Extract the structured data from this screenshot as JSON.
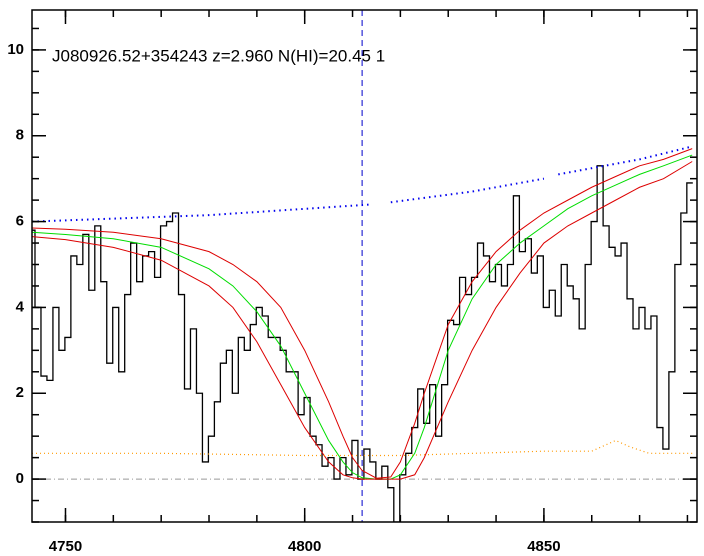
{
  "chart_data": {
    "type": "spectrum",
    "title": "J080926.52+354243 z=2.960 N(HI)=20.45 1",
    "xlim": [
      4743,
      4882
    ],
    "ylim": [
      -1,
      10.93
    ],
    "xticks": [
      4750,
      4800,
      4850
    ],
    "yticks": [
      0,
      2,
      4,
      6,
      8,
      10
    ],
    "xminor_ticks": [
      4750,
      4760,
      4770,
      4780,
      4790,
      4800,
      4810,
      4820,
      4830,
      4840,
      4850,
      4860,
      4870,
      4880
    ],
    "yminor_ticks": [
      -1,
      -0.5,
      0,
      0.5,
      1,
      1.5,
      2,
      2.5,
      3,
      3.5,
      4,
      4.5,
      5,
      5.5,
      6,
      6.5,
      7,
      7.5,
      8,
      8.5,
      9,
      9.5,
      10,
      10.5
    ],
    "zero_line": 0,
    "marker_x": 4812,
    "series": [
      {
        "role": "flux",
        "color": "#000000",
        "x": [
          4743,
          4744.25,
          4745.5,
          4746.75,
          4748,
          4749.25,
          4750.5,
          4751.75,
          4753,
          4754.25,
          4755.5,
          4756.75,
          4758,
          4759.25,
          4760.5,
          4761.75,
          4763,
          4764.25,
          4765.5,
          4766.75,
          4768,
          4769.25,
          4770.5,
          4771.75,
          4773,
          4774.25,
          4775.5,
          4776.75,
          4778,
          4779.25,
          4780.5,
          4781.75,
          4783,
          4784.25,
          4785.5,
          4786.75,
          4788,
          4789.25,
          4790.5,
          4791.75,
          4793,
          4794.25,
          4795.5,
          4796.75,
          4798,
          4799.25,
          4800.5,
          4801.75,
          4803,
          4804.25,
          4805.5,
          4806.75,
          4808,
          4809.25,
          4810.5,
          4811.75,
          4813,
          4814.25,
          4815.5,
          4816.75,
          4818,
          4819.25,
          4820.5,
          4821.75,
          4823,
          4824.25,
          4825.5,
          4826.75,
          4828,
          4829.25,
          4830.5,
          4831.75,
          4833,
          4834.25,
          4835.5,
          4836.75,
          4838,
          4839.25,
          4840.5,
          4841.75,
          4843,
          4844.25,
          4845.5,
          4846.75,
          4848,
          4849.25,
          4850.5,
          4851.75,
          4853,
          4854.25,
          4855.5,
          4856.75,
          4858,
          4859.25,
          4860.5,
          4861.75,
          4863,
          4864.25,
          4865.5,
          4866.75,
          4868,
          4869.25,
          4870.5,
          4871.75,
          4873,
          4874.25,
          4875.5,
          4876.75,
          4878,
          4879.25,
          4880.5
        ],
        "values": [
          5.8,
          4.0,
          2.4,
          2.3,
          4.0,
          3.0,
          3.3,
          5.2,
          5.0,
          5.7,
          4.4,
          5.9,
          4.6,
          2.7,
          4.0,
          2.5,
          4.3,
          5.5,
          4.6,
          5.2,
          5.3,
          4.7,
          5.9,
          6.0,
          6.2,
          4.3,
          2.1,
          3.5,
          2.0,
          0.4,
          1.0,
          1.8,
          2.7,
          3.0,
          2.0,
          3.3,
          3.0,
          3.6,
          4.0,
          3.8,
          3.3,
          3.3,
          3.0,
          2.5,
          2.5,
          1.5,
          1.9,
          1.0,
          0.8,
          0.3,
          0.5,
          0.0,
          0.5,
          0.1,
          0.9,
          0.0,
          0.7,
          0.4,
          0.0,
          0.3,
          -0.2,
          -1.0,
          0.1,
          0.6,
          1.2,
          2.1,
          1.3,
          2.2,
          1.0,
          2.2,
          3.7,
          3.6,
          4.7,
          4.3,
          4.7,
          5.5,
          5.2,
          4.6,
          5.0,
          4.5,
          5.0,
          6.6,
          5.3,
          5.6,
          4.8,
          5.2,
          4.0,
          4.4,
          3.8,
          5.0,
          4.5,
          4.2,
          3.5,
          5.0,
          6.0,
          7.3,
          5.9,
          5.4,
          5.2,
          5.5,
          4.2,
          3.5,
          4.0,
          3.5,
          3.8,
          1.2,
          0.7,
          2.5,
          5.0,
          6.2,
          6.9
        ]
      },
      {
        "role": "model",
        "color": "#00dd00",
        "x": [
          4743,
          4750,
          4760,
          4770,
          4780,
          4785,
          4790,
          4795,
          4800,
          4805,
          4808,
          4810,
          4812,
          4815,
          4818,
          4820,
          4823,
          4825,
          4830,
          4835,
          4840,
          4845,
          4850,
          4855,
          4860,
          4865,
          4870,
          4875,
          4881
        ],
        "values": [
          5.75,
          5.7,
          5.6,
          5.4,
          4.9,
          4.5,
          3.9,
          3.1,
          2.0,
          0.9,
          0.4,
          0.15,
          0.03,
          0,
          0,
          0.1,
          0.6,
          1.2,
          3.0,
          4.2,
          5.0,
          5.5,
          5.9,
          6.3,
          6.6,
          6.85,
          7.1,
          7.3,
          7.55
        ]
      },
      {
        "role": "model-upper",
        "color": "#dd0000",
        "x": [
          4743,
          4750,
          4760,
          4770,
          4780,
          4785,
          4790,
          4795,
          4800,
          4805,
          4808,
          4810,
          4812,
          4815,
          4818,
          4820,
          4823,
          4825,
          4830,
          4835,
          4840,
          4845,
          4850,
          4855,
          4860,
          4865,
          4870,
          4875,
          4881
        ],
        "values": [
          5.85,
          5.82,
          5.75,
          5.6,
          5.3,
          5.0,
          4.6,
          4.0,
          3.0,
          1.8,
          1.0,
          0.5,
          0.2,
          0.02,
          0.05,
          0.4,
          1.3,
          2.0,
          3.6,
          4.6,
          5.3,
          5.8,
          6.2,
          6.5,
          6.8,
          7.05,
          7.3,
          7.45,
          7.7
        ]
      },
      {
        "role": "model-lower",
        "color": "#dd0000",
        "x": [
          4743,
          4750,
          4760,
          4770,
          4780,
          4785,
          4790,
          4795,
          4800,
          4805,
          4808,
          4810,
          4812,
          4815,
          4818,
          4820,
          4823,
          4825,
          4830,
          4835,
          4840,
          4845,
          4850,
          4855,
          4860,
          4865,
          4870,
          4875,
          4881
        ],
        "values": [
          5.65,
          5.58,
          5.4,
          5.1,
          4.5,
          4.0,
          3.2,
          2.2,
          1.2,
          0.4,
          0.1,
          0.03,
          0,
          0,
          0,
          0,
          0.1,
          0.5,
          1.8,
          3.0,
          4.0,
          4.8,
          5.5,
          5.9,
          6.2,
          6.5,
          6.8,
          7.0,
          7.4
        ]
      },
      {
        "role": "continuum",
        "color": "#0000ee",
        "x": [
          4743,
          4780,
          4814,
          4815,
          4818,
          4835,
          4850,
          4851,
          4853,
          4870,
          4881
        ],
        "values": [
          6.0,
          6.15,
          6.4,
          null,
          6.45,
          6.7,
          7.0,
          null,
          7.1,
          7.45,
          7.75
        ]
      },
      {
        "role": "error",
        "color": "#ff9900",
        "x": [
          4743,
          4770,
          4800,
          4820,
          4850,
          4860,
          4863,
          4865,
          4868,
          4872,
          4881
        ],
        "values": [
          0.6,
          0.6,
          0.55,
          0.55,
          0.65,
          0.65,
          0.8,
          0.9,
          0.75,
          0.6,
          0.6
        ]
      }
    ]
  }
}
